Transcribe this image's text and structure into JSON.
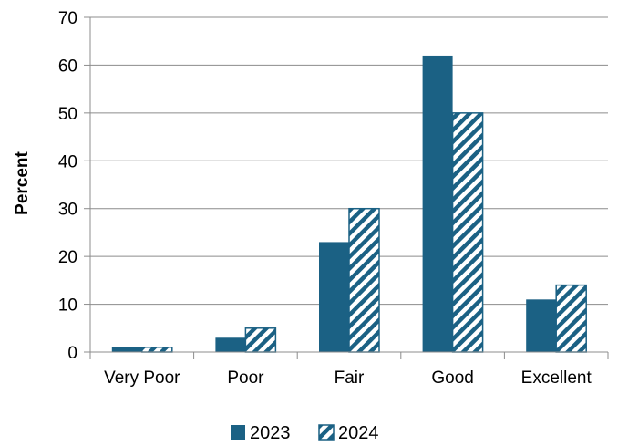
{
  "chart_data": {
    "type": "bar",
    "title": "",
    "xlabel": "",
    "ylabel": "Percent",
    "categories": [
      "Very Poor",
      "Poor",
      "Fair",
      "Good",
      "Excellent"
    ],
    "ylim": [
      0,
      70
    ],
    "yticks": [
      0,
      10,
      20,
      30,
      40,
      50,
      60,
      70
    ],
    "grid": true,
    "legend_position": "bottom-center",
    "series": [
      {
        "name": "2023",
        "values": [
          1,
          3,
          23,
          62,
          11
        ],
        "color": "#1b6184",
        "fill": "solid"
      },
      {
        "name": "2024",
        "values": [
          1,
          5,
          30,
          50,
          14
        ],
        "color": "#1b6184",
        "fill": "diagonal-stripes"
      }
    ]
  }
}
